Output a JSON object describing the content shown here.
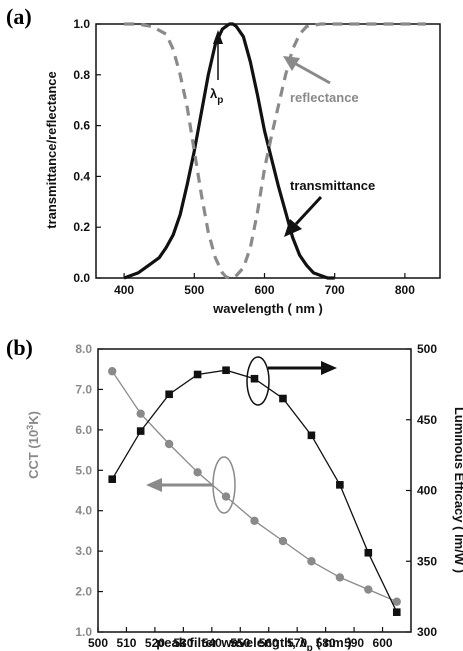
{
  "chart_data": [
    {
      "panel": "(a)",
      "type": "line",
      "xlabel": "wavelength ( nm )",
      "ylabel": "transmittance/reflectance",
      "xlim": [
        360,
        850
      ],
      "ylim": [
        0,
        1.0
      ],
      "xticks": [
        "400",
        "500",
        "600",
        "700",
        "800"
      ],
      "yticks": [
        "0.0",
        "0.2",
        "0.4",
        "0.6",
        "0.8",
        "1.0"
      ],
      "annotations": {
        "peak": "λ",
        "peak_sub": "p",
        "reflectance": "reflectance",
        "transmittance": "transmittance"
      },
      "series": [
        {
          "name": "transmittance",
          "style": "solid",
          "color": "#111111",
          "x": [
            400,
            420,
            440,
            450,
            460,
            470,
            480,
            490,
            500,
            510,
            520,
            530,
            540,
            550,
            555,
            560,
            570,
            580,
            590,
            600,
            610,
            620,
            630,
            640,
            650,
            660,
            670,
            680,
            690,
            700
          ],
          "y": [
            0.0,
            0.02,
            0.06,
            0.08,
            0.12,
            0.17,
            0.25,
            0.37,
            0.5,
            0.65,
            0.8,
            0.92,
            0.98,
            1.0,
            1.0,
            0.99,
            0.95,
            0.85,
            0.72,
            0.58,
            0.47,
            0.36,
            0.26,
            0.16,
            0.09,
            0.05,
            0.02,
            0.01,
            0.0,
            0.0
          ]
        },
        {
          "name": "reflectance",
          "style": "dashed",
          "color": "#8a8a8a",
          "x": [
            400,
            420,
            440,
            460,
            470,
            480,
            490,
            500,
            510,
            520,
            530,
            540,
            545,
            550,
            555,
            560,
            570,
            580,
            590,
            600,
            610,
            620,
            630,
            640,
            650,
            660,
            680,
            700,
            750,
            800,
            830
          ],
          "y": [
            1.0,
            1.0,
            0.99,
            0.96,
            0.9,
            0.8,
            0.67,
            0.5,
            0.33,
            0.18,
            0.08,
            0.02,
            0.005,
            0.0,
            0.0,
            0.01,
            0.04,
            0.12,
            0.26,
            0.43,
            0.56,
            0.68,
            0.8,
            0.9,
            0.96,
            0.99,
            1.0,
            1.0,
            1.0,
            1.0,
            1.0
          ]
        }
      ]
    },
    {
      "panel": "(b)",
      "type": "line",
      "xlabel": "peak filter wavelength, λ",
      "xlabel_sub": "p",
      "xlabel_unit": " ( nm )",
      "ylabel_left": "CCT (10",
      "ylabel_left_sup": "3",
      "ylabel_left_end": "K)",
      "ylabel_right": "Luminous Efficacy ( lm/W )",
      "xlim": [
        500,
        610
      ],
      "ylim_left": [
        1.0,
        8.0
      ],
      "ylim_right": [
        300,
        500
      ],
      "xticks": [
        "500",
        "510",
        "520",
        "530",
        "540",
        "550",
        "560",
        "570",
        "580",
        "590",
        "600"
      ],
      "yticks_left": [
        "1.0",
        "2.0",
        "3.0",
        "4.0",
        "5.0",
        "6.0",
        "7.0",
        "8.0"
      ],
      "yticks_right": [
        "300",
        "350",
        "400",
        "450",
        "500"
      ],
      "x": [
        505,
        515,
        525,
        535,
        545,
        555,
        565,
        575,
        585,
        595,
        605
      ],
      "series": [
        {
          "name": "CCT",
          "axis": "left",
          "marker": "circle",
          "color": "#8a8a8a",
          "values": [
            7.45,
            6.4,
            5.65,
            4.95,
            4.35,
            3.75,
            3.25,
            2.75,
            2.35,
            2.05,
            1.75
          ]
        },
        {
          "name": "Luminous Efficacy",
          "axis": "right",
          "marker": "square",
          "color": "#111111",
          "values": [
            408,
            442,
            468,
            482,
            485,
            479,
            465,
            439,
            404,
            356,
            314
          ]
        }
      ]
    }
  ]
}
